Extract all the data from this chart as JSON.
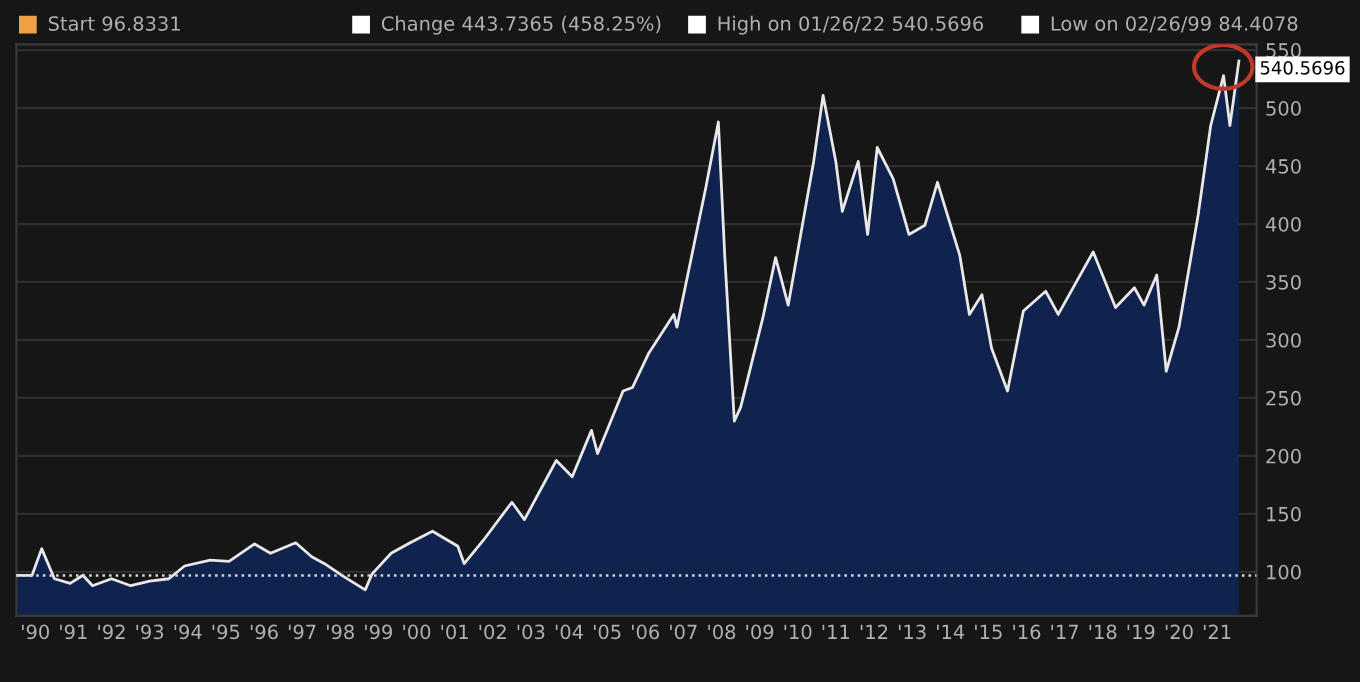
{
  "chart_data": {
    "type": "area",
    "x": [
      "1990-01-02",
      "1990-06",
      "1990-09",
      "1991-01",
      "1991-06",
      "1991-10",
      "1992-01",
      "1992-07",
      "1993-01",
      "1993-07",
      "1994-01",
      "1994-06",
      "1995-02",
      "1995-08",
      "1996-04",
      "1996-09",
      "1997-05",
      "1997-10",
      "1998-02",
      "1998-08",
      "1999-02-26",
      "1999-05",
      "1999-11",
      "2000-05",
      "2000-12",
      "2001-08",
      "2001-10",
      "2002-04",
      "2003-01",
      "2003-05",
      "2004-03",
      "2004-08",
      "2005-02",
      "2005-04",
      "2005-12",
      "2006-03",
      "2006-08",
      "2007-04",
      "2007-05",
      "2008-02",
      "2008-06",
      "2008-08",
      "2008-11",
      "2009-01",
      "2009-08",
      "2009-12",
      "2010-04",
      "2010-12",
      "2011-03",
      "2011-07",
      "2011-09",
      "2012-02",
      "2012-05",
      "2012-08",
      "2013-01",
      "2013-06",
      "2013-11",
      "2014-03",
      "2014-10",
      "2015-01",
      "2015-05",
      "2015-08",
      "2016-01",
      "2016-06",
      "2017-01",
      "2017-05",
      "2018-04",
      "2018-11",
      "2019-05",
      "2019-08",
      "2019-12",
      "2020-03",
      "2020-07",
      "2021-01",
      "2021-05",
      "2021-09",
      "2021-11",
      "2022-01-26"
    ],
    "series": [
      {
        "color": "#10234f",
        "values": [
          96.8331,
          97,
          120,
          94,
          90,
          97,
          88,
          94,
          88,
          92,
          94,
          105,
          110,
          109,
          124,
          116,
          125,
          113,
          107,
          96,
          84.4078,
          98,
          116,
          125,
          135,
          122,
          107,
          127,
          160,
          145,
          196,
          182,
          222,
          202,
          256,
          259,
          288,
          322,
          311,
          431,
          488,
          373,
          230,
          242,
          319,
          371,
          330,
          454,
          511,
          454,
          411,
          454,
          391,
          466,
          439,
          391,
          399,
          436,
          373,
          322,
          339,
          293,
          256,
          325,
          342,
          322,
          376,
          328,
          345,
          330,
          356,
          273,
          311,
          408,
          485,
          528,
          485,
          540.5696
        ]
      }
    ],
    "xlim": [
      "1990-01-01",
      "2022-07-15"
    ],
    "xticks": [
      {
        "value": "1990-07-01",
        "label": "'90"
      },
      {
        "value": "1991-07-01",
        "label": "'91"
      },
      {
        "value": "1992-07-01",
        "label": "'92"
      },
      {
        "value": "1993-07-01",
        "label": "'93"
      },
      {
        "value": "1994-07-01",
        "label": "'94"
      },
      {
        "value": "1995-07-01",
        "label": "'95"
      },
      {
        "value": "1996-07-01",
        "label": "'96"
      },
      {
        "value": "1997-07-01",
        "label": "'97"
      },
      {
        "value": "1998-07-01",
        "label": "'98"
      },
      {
        "value": "1999-07-01",
        "label": "'99"
      },
      {
        "value": "2000-07-01",
        "label": "'00"
      },
      {
        "value": "2001-07-01",
        "label": "'01"
      },
      {
        "value": "2002-07-01",
        "label": "'02"
      },
      {
        "value": "2003-07-01",
        "label": "'03"
      },
      {
        "value": "2004-07-01",
        "label": "'04"
      },
      {
        "value": "2005-07-01",
        "label": "'05"
      },
      {
        "value": "2006-07-01",
        "label": "'06"
      },
      {
        "value": "2007-07-01",
        "label": "'07"
      },
      {
        "value": "2008-07-01",
        "label": "'08"
      },
      {
        "value": "2009-07-01",
        "label": "'09"
      },
      {
        "value": "2010-07-01",
        "label": "'10"
      },
      {
        "value": "2011-07-01",
        "label": "'11"
      },
      {
        "value": "2012-07-01",
        "label": "'12"
      },
      {
        "value": "2013-07-01",
        "label": "'13"
      },
      {
        "value": "2014-07-01",
        "label": "'14"
      },
      {
        "value": "2015-07-01",
        "label": "'15"
      },
      {
        "value": "2016-07-01",
        "label": "'16"
      },
      {
        "value": "2017-07-01",
        "label": "'17"
      },
      {
        "value": "2018-07-01",
        "label": "'18"
      },
      {
        "value": "2019-07-01",
        "label": "'19"
      },
      {
        "value": "2020-07-01",
        "label": "'20"
      },
      {
        "value": "2021-07-01",
        "label": "'21"
      }
    ],
    "ylim": [
      62,
      555
    ],
    "yticks": [
      100,
      150,
      200,
      250,
      300,
      350,
      400,
      450,
      500,
      550
    ],
    "grid": "y",
    "ref_lines": [
      {
        "axis": "y",
        "value": 96.8331,
        "color": "#d9d9d9",
        "line_style": "dotted"
      }
    ],
    "annotations": [
      "Start 96.8331",
      "Change 443.7365 (458.25%)",
      "High on 01/26/22 540.5696",
      "Low on 02/26/99 84.4078",
      {
        "text": "540.5696",
        "x": "2022-01-26",
        "y": 540.5696
      }
    ]
  }
}
